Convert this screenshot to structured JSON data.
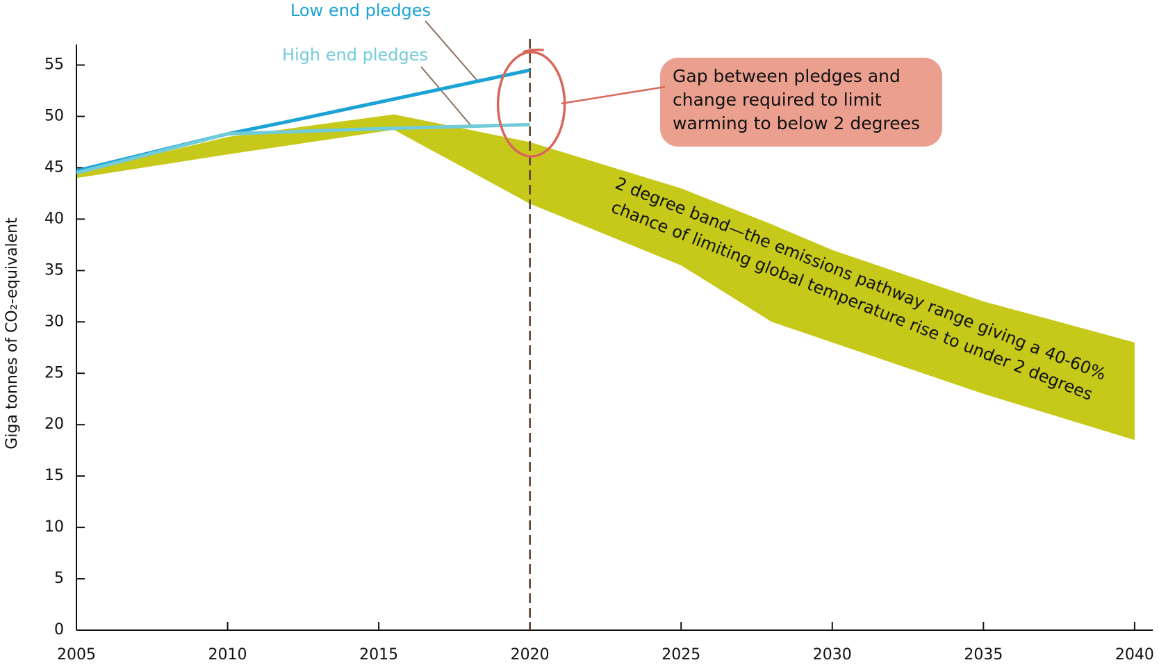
{
  "chart_data": {
    "type": "line",
    "y_label": "Giga tonnes of CO₂-equivalent",
    "xlim": [
      2005,
      2040.6
    ],
    "ylim": [
      0,
      57
    ],
    "xticks": [
      2005,
      2010,
      2015,
      2020,
      2025,
      2030,
      2035,
      2040
    ],
    "yticks": [
      0,
      5,
      10,
      15,
      20,
      25,
      30,
      35,
      40,
      45,
      50,
      55
    ],
    "series": [
      {
        "name": "Low end pledges",
        "color": "#1aa3d4",
        "x": [
          2005,
          2010,
          2012,
          2020
        ],
        "values": [
          44.7,
          48.3,
          49.5,
          54.5
        ]
      },
      {
        "name": "High end pledges",
        "color": "#72cbd9",
        "x": [
          2005,
          2010,
          2015,
          2020
        ],
        "values": [
          44.5,
          48.3,
          48.8,
          49.2
        ]
      }
    ],
    "band": {
      "color": "#c7c91a",
      "x": [
        2005,
        2010,
        2015.5,
        2020,
        2025,
        2028,
        2030,
        2035,
        2040
      ],
      "upper": [
        44.5,
        48,
        50.2,
        47.5,
        43,
        39.5,
        37,
        32,
        28
      ],
      "lower": [
        44,
        46.3,
        48.7,
        41.5,
        35.5,
        30,
        28,
        23,
        18.5
      ],
      "label": [
        "2 degree band—the emissions pathway range giving a 40-60%",
        "chance of limiting global temperature rise to under 2 degrees"
      ]
    },
    "vline": 2020,
    "gap_annotation": [
      "Gap between pledges and",
      "change required to limit",
      "warming to below 2 degrees"
    ]
  }
}
